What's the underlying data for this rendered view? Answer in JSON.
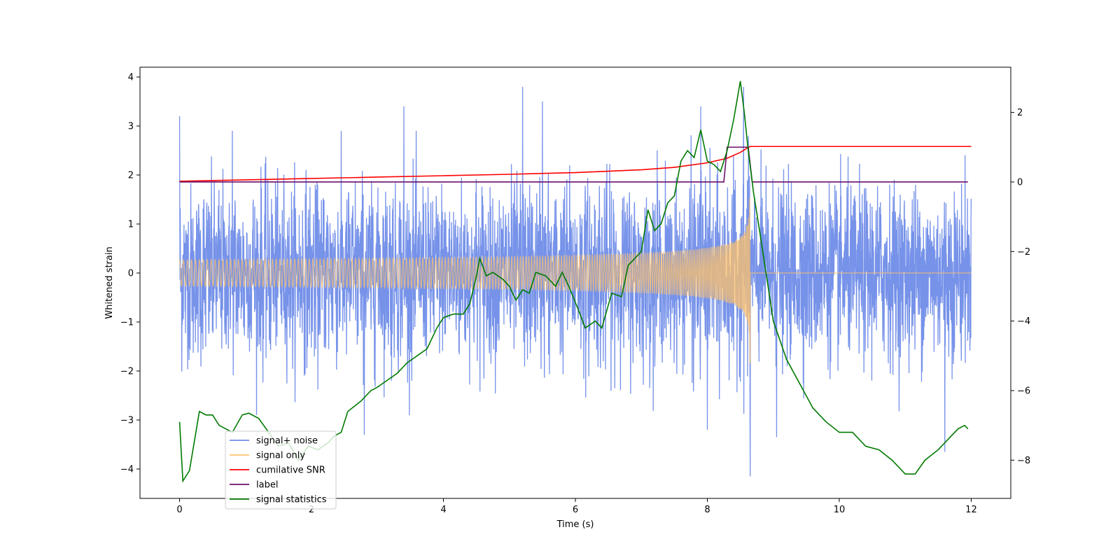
{
  "chart_data": {
    "type": "line",
    "title": "",
    "xlabel": "Time (s)",
    "ylabel": "Whitened strain",
    "y2label": "",
    "xlim": [
      -0.6,
      12.6
    ],
    "ylim": [
      -4.6,
      4.2
    ],
    "y2lim": [
      -9.1,
      3.3
    ],
    "xticks": [
      0,
      2,
      4,
      6,
      8,
      10,
      12
    ],
    "yticks": [
      -4,
      -3,
      -2,
      -1,
      0,
      1,
      2,
      3,
      4
    ],
    "y2ticks": [
      -8,
      -6,
      -4,
      -2,
      0,
      2
    ],
    "grid": false,
    "legend_position": "lower-left",
    "series": [
      {
        "name": "signal+ noise",
        "axis": "left",
        "color": "#6f8ce8",
        "x_range": [
          0,
          12
        ],
        "noise_sigma": 0.85,
        "peaks": [
          [
            0.0,
            3.2
          ],
          [
            0.8,
            2.9
          ],
          [
            3.4,
            3.4
          ],
          [
            5.2,
            3.8
          ],
          [
            5.5,
            3.5
          ],
          [
            7.9,
            3.4
          ],
          [
            8.55,
            3.8
          ],
          [
            8.65,
            -4.15
          ],
          [
            8.0,
            -3.2
          ],
          [
            2.8,
            -3.3
          ],
          [
            11.6,
            -3.65
          ],
          [
            9.05,
            -3.35
          ]
        ]
      },
      {
        "name": "signal only",
        "axis": "left",
        "color": "#ffc26b",
        "chirp_end": 8.65,
        "peak_amplitude": 1.85
      },
      {
        "name": "cumilative SNR",
        "axis": "right",
        "color": "#ff0000",
        "x": [
          0,
          1,
          2,
          3,
          4,
          5,
          6,
          7,
          7.5,
          8,
          8.3,
          8.5,
          8.6,
          8.65,
          12
        ],
        "y": [
          0.02,
          0.06,
          0.1,
          0.14,
          0.18,
          0.22,
          0.27,
          0.35,
          0.42,
          0.55,
          0.68,
          0.85,
          0.97,
          1.02,
          1.02
        ]
      },
      {
        "name": "label",
        "axis": "right",
        "color": "#6b0f6b",
        "x": [
          0,
          8.25,
          8.3,
          8.62,
          8.68,
          11.95
        ],
        "y": [
          0,
          0,
          1.0,
          1.0,
          0,
          0
        ]
      },
      {
        "name": "signal statistics",
        "axis": "right",
        "color": "#007a00",
        "x": [
          0,
          0.05,
          0.15,
          0.3,
          0.4,
          0.5,
          0.6,
          0.8,
          0.95,
          1.05,
          1.2,
          1.35,
          1.5,
          1.65,
          1.8,
          1.95,
          2.1,
          2.25,
          2.35,
          2.45,
          2.55,
          2.75,
          2.9,
          3.0,
          3.15,
          3.3,
          3.45,
          3.6,
          3.75,
          3.9,
          4.0,
          4.15,
          4.3,
          4.4,
          4.5,
          4.55,
          4.65,
          4.75,
          4.9,
          5.0,
          5.1,
          5.2,
          5.3,
          5.4,
          5.55,
          5.7,
          5.8,
          5.9,
          6.05,
          6.15,
          6.3,
          6.4,
          6.55,
          6.7,
          6.8,
          6.9,
          7.0,
          7.1,
          7.2,
          7.3,
          7.4,
          7.5,
          7.6,
          7.7,
          7.8,
          7.9,
          8.0,
          8.1,
          8.2,
          8.3,
          8.4,
          8.5,
          8.56,
          8.62,
          8.7,
          8.8,
          9.0,
          9.2,
          9.4,
          9.6,
          9.8,
          10.0,
          10.2,
          10.4,
          10.6,
          10.8,
          11.0,
          11.15,
          11.3,
          11.5,
          11.7,
          11.8,
          11.9,
          11.95
        ],
        "y": [
          -6.9,
          -8.6,
          -8.3,
          -6.6,
          -6.7,
          -6.7,
          -7.0,
          -7.2,
          -6.7,
          -6.65,
          -6.8,
          -7.2,
          -7.6,
          -7.5,
          -8.0,
          -7.6,
          -7.7,
          -7.5,
          -7.3,
          -7.2,
          -6.6,
          -6.3,
          -6.0,
          -5.9,
          -5.7,
          -5.5,
          -5.2,
          -5.0,
          -4.8,
          -4.2,
          -3.9,
          -3.8,
          -3.8,
          -3.5,
          -2.7,
          -2.2,
          -2.7,
          -2.6,
          -2.8,
          -3.0,
          -3.4,
          -3.1,
          -3.2,
          -2.6,
          -2.7,
          -3.0,
          -2.6,
          -3.0,
          -3.7,
          -4.2,
          -4.0,
          -4.2,
          -3.2,
          -3.3,
          -2.4,
          -2.2,
          -2.0,
          -0.8,
          -1.4,
          -1.2,
          -0.6,
          -0.4,
          0.6,
          0.9,
          0.7,
          1.5,
          0.6,
          0.5,
          0.3,
          0.9,
          1.8,
          2.9,
          2.0,
          0.9,
          -0.3,
          -1.5,
          -4.0,
          -5.1,
          -5.8,
          -6.5,
          -6.9,
          -7.2,
          -7.2,
          -7.6,
          -7.7,
          -8.0,
          -8.4,
          -8.4,
          -8.0,
          -7.7,
          -7.3,
          -7.1,
          -7.0,
          -7.1
        ]
      }
    ]
  }
}
